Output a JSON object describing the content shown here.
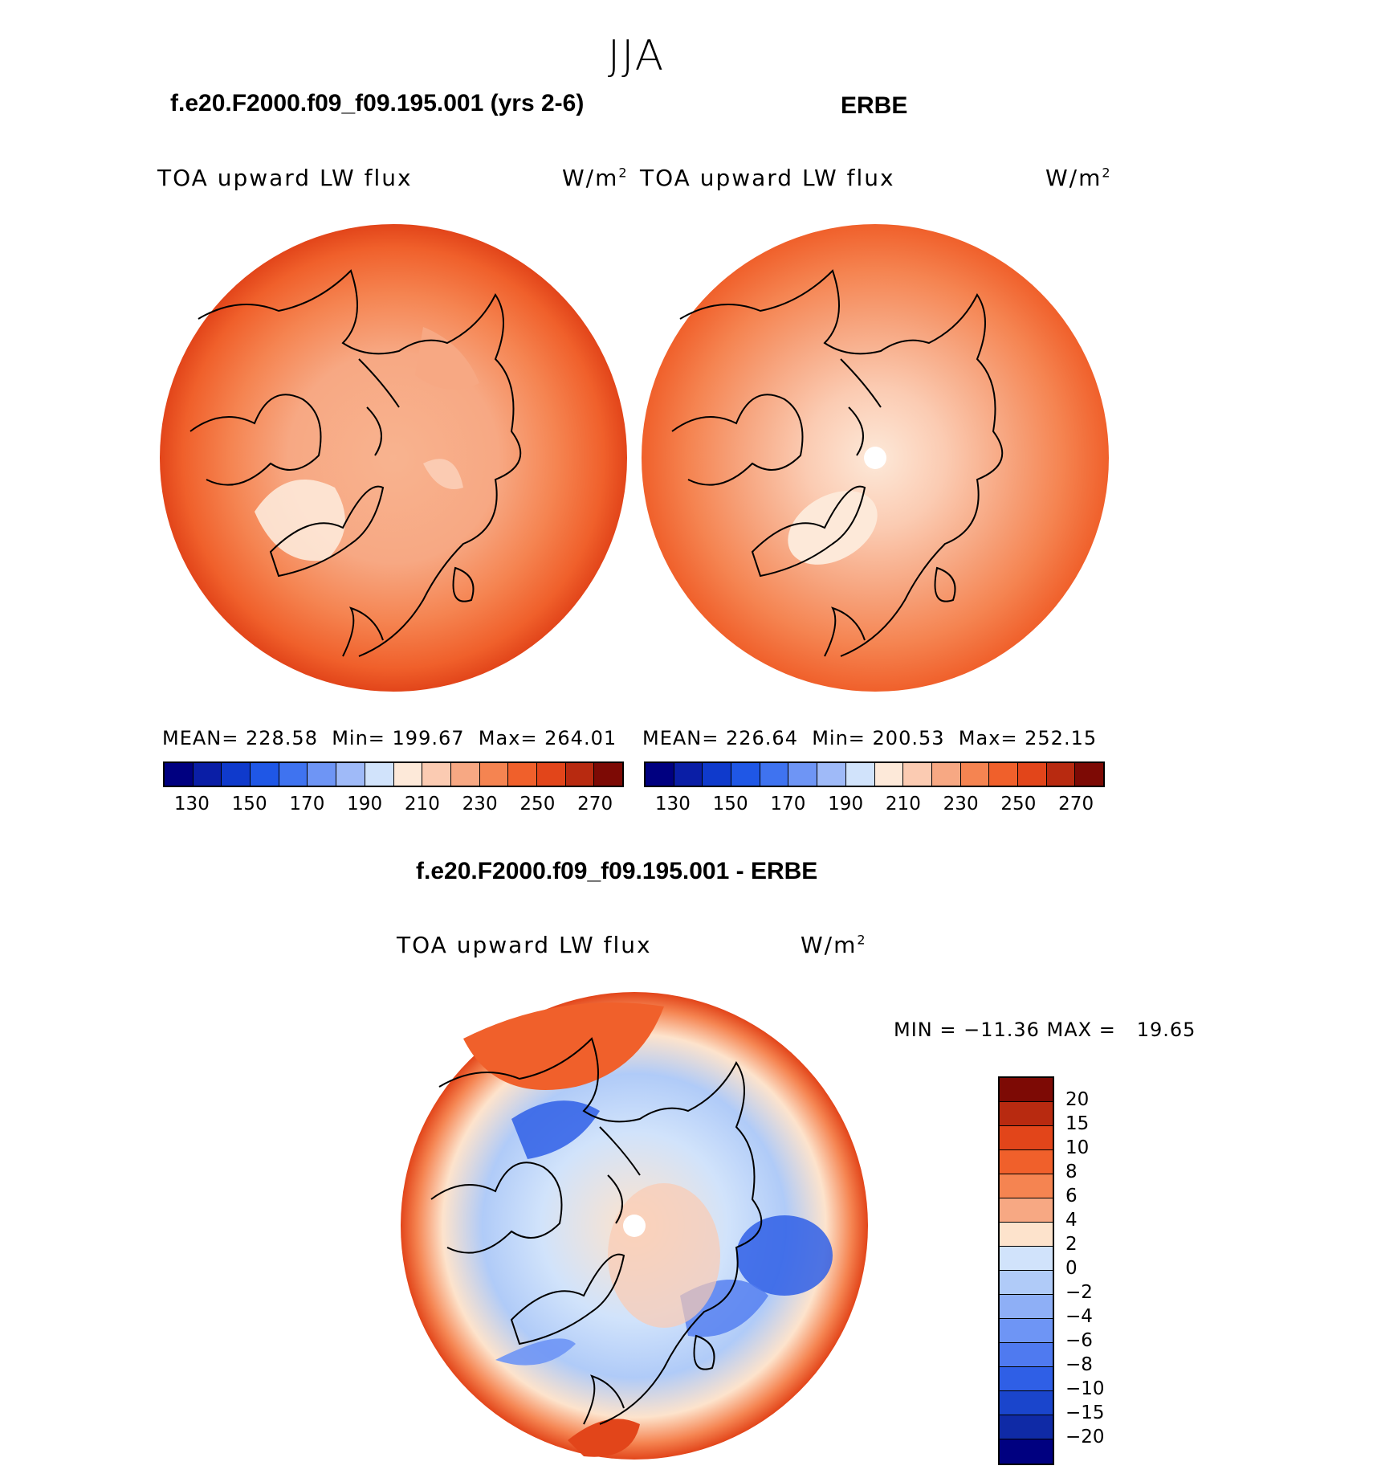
{
  "season": "JJA",
  "panels": [
    {
      "title": "f.e20.F2000.f09_f09.195.001 (yrs 2-6)",
      "label": "TOA upward LW flux",
      "units_base": "W/m",
      "units_exp": "2",
      "stats": "MEAN= 228.58  Min= 199.67  Max= 264.01"
    },
    {
      "title": "ERBE",
      "label": "TOA upward LW flux",
      "units_base": "W/m",
      "units_exp": "2",
      "stats": "MEAN= 226.64  Min= 200.53  Max= 252.15"
    }
  ],
  "abs_colorbar": {
    "colors": [
      "#000080",
      "#0a1ea6",
      "#0f3acc",
      "#1f57e6",
      "#3f73f0",
      "#6e95f5",
      "#9fbaf8",
      "#d1e3fb",
      "#fde9d9",
      "#fbcbb2",
      "#f7a883",
      "#f58451",
      "#f0602b",
      "#e2451a",
      "#b82a10",
      "#7d0a05"
    ],
    "ticks": [
      "130",
      "150",
      "170",
      "190",
      "210",
      "230",
      "250",
      "270"
    ]
  },
  "diff": {
    "title": "f.e20.F2000.f09_f09.195.001 - ERBE",
    "label": "TOA upward LW flux",
    "units_base": "W/m",
    "units_exp": "2",
    "stats": "MIN = −11.36 MAX =   19.65"
  },
  "diff_colorbar": {
    "colors": [
      "#7d0a05",
      "#b82a10",
      "#e2451a",
      "#f0602b",
      "#f58451",
      "#f7a883",
      "#fde3cc",
      "#d1e3fb",
      "#b0cbf8",
      "#8eaff6",
      "#6e95f5",
      "#4f7af0",
      "#2f5fe6",
      "#1a45cc",
      "#0f2aa6",
      "#000080"
    ],
    "ticks": [
      "20",
      "15",
      "10",
      "8",
      "6",
      "4",
      "2",
      "0",
      "−2",
      "−4",
      "−6",
      "−8",
      "−10",
      "−15",
      "−20"
    ]
  }
}
